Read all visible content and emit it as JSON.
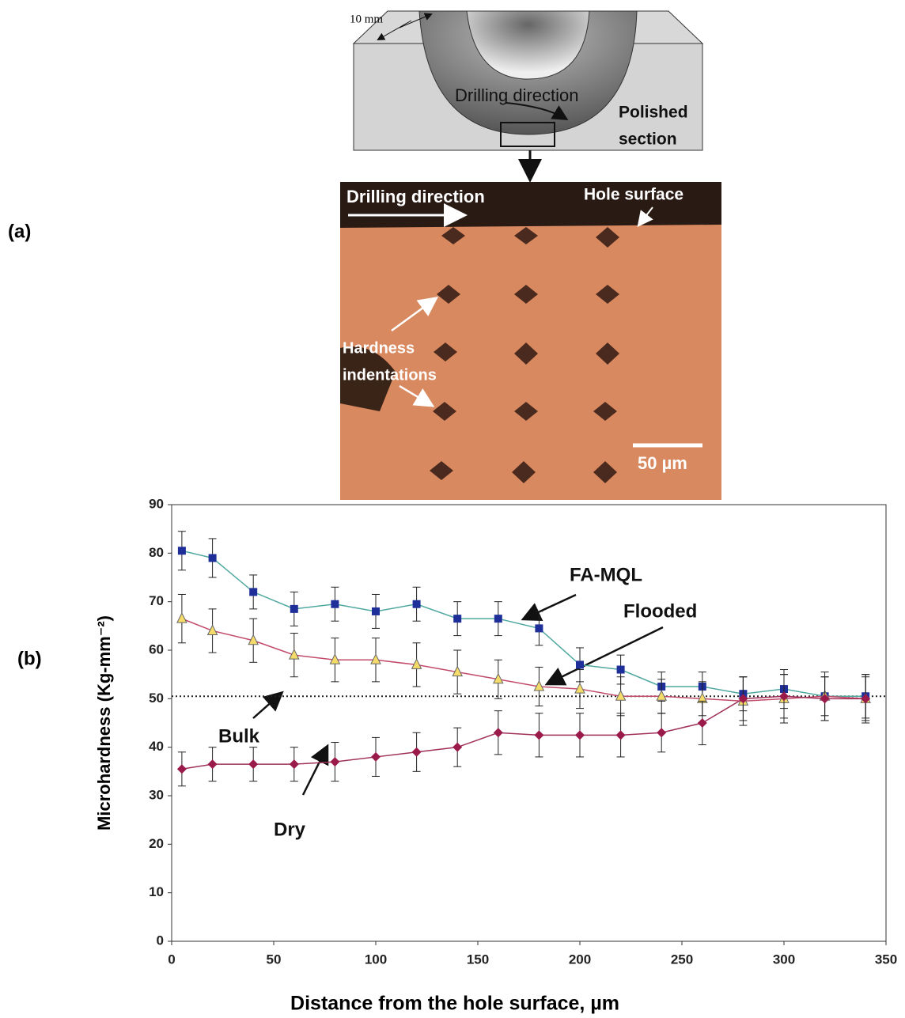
{
  "figure": {
    "panel_a": "(a)",
    "panel_b": "(b)",
    "schematic": {
      "dimension": "10 mm",
      "drilling": "Drilling direction",
      "polished_1": "Polished",
      "polished_2": "section"
    },
    "micrograph": {
      "drilling": "Drilling direction",
      "surface": "Hole surface",
      "hardness_1": "Hardness",
      "hardness_2": "indentations",
      "scale": "50 µm"
    }
  },
  "chart_data": {
    "type": "line",
    "x_label": "Distance from the hole surface,  µm",
    "y_label": "Microhardness  (Kg-mm⁻²)",
    "x": [
      5,
      20,
      40,
      60,
      80,
      100,
      120,
      140,
      160,
      180,
      200,
      220,
      240,
      260,
      280,
      300,
      320,
      340
    ],
    "series": [
      {
        "name": "FA-MQL",
        "color": "#1f2f9a",
        "marker": "square",
        "values": [
          80.5,
          79,
          72,
          68.5,
          69.5,
          68,
          69.5,
          66.5,
          66.5,
          64.5,
          57,
          56,
          52.5,
          52.5,
          51,
          52,
          50.5,
          50.5
        ],
        "errors": [
          4,
          4,
          3.5,
          3.5,
          3.5,
          3.5,
          3.5,
          3.5,
          3.5,
          3.5,
          3.5,
          3,
          3,
          3,
          3.5,
          4,
          4,
          4.5
        ]
      },
      {
        "name": "Flooded",
        "color": "#f5dc6a",
        "marker": "triangle",
        "values": [
          66.5,
          64,
          62,
          59,
          58,
          58,
          57,
          55.5,
          54,
          52.5,
          52,
          50.5,
          50.5,
          50,
          49.5,
          50,
          50.5,
          50
        ],
        "errors": [
          5,
          4.5,
          4.5,
          4.5,
          4.5,
          4.5,
          4.5,
          4.5,
          4,
          4,
          4,
          4,
          3.5,
          3.5,
          5,
          5,
          5,
          5
        ]
      },
      {
        "name": "Dry",
        "color": "#9a1a4a",
        "marker": "diamond",
        "values": [
          35.5,
          36.5,
          36.5,
          36.5,
          37,
          38,
          39,
          40,
          43,
          42.5,
          42.5,
          42.5,
          43,
          45,
          50,
          50.5,
          50,
          50
        ],
        "errors": [
          3.5,
          3.5,
          3.5,
          3.5,
          4,
          4,
          4,
          4,
          4.5,
          4.5,
          4.5,
          4.5,
          4,
          4.5,
          4.5,
          4.5,
          4.5,
          4.5
        ]
      }
    ],
    "reference_line": {
      "label": "Bulk",
      "value": 50.5
    },
    "xlim": [
      0,
      350
    ],
    "xticks": [
      0,
      50,
      100,
      150,
      200,
      250,
      300,
      350
    ],
    "ylim": [
      0,
      90
    ],
    "yticks": [
      0,
      10,
      20,
      30,
      40,
      50,
      60,
      70,
      80,
      90
    ]
  }
}
